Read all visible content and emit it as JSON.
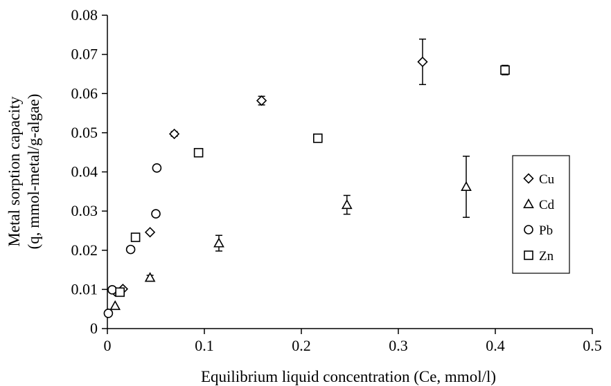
{
  "chart_data": {
    "type": "scatter",
    "title": "",
    "xlabel": "Equilibrium liquid concentration (Ce, mmol/l)",
    "ylabel_line1": "Metal sorption capacity",
    "ylabel_line2": "(q, mmol-metal/g-algae)",
    "xlim": [
      0,
      0.5
    ],
    "ylim": [
      0,
      0.08
    ],
    "x_ticks": [
      "0",
      "0.1",
      "0.2",
      "0.3",
      "0.4",
      "0.5"
    ],
    "y_ticks": [
      "0",
      "0.01",
      "0.02",
      "0.03",
      "0.04",
      "0.05",
      "0.06",
      "0.07",
      "0.08"
    ],
    "x_tick_values": [
      0,
      0.1,
      0.2,
      0.3,
      0.4,
      0.5
    ],
    "y_tick_values": [
      0,
      0.01,
      0.02,
      0.03,
      0.04,
      0.05,
      0.06,
      0.07,
      0.08
    ],
    "grid": false,
    "legend_position": "right",
    "series": [
      {
        "name": "Cu",
        "marker": "diamond",
        "points": [
          {
            "x": 0.008,
            "y": 0.0095,
            "err": 0
          },
          {
            "x": 0.016,
            "y": 0.0101,
            "err": 0
          },
          {
            "x": 0.044,
            "y": 0.0246,
            "err": 0
          },
          {
            "x": 0.069,
            "y": 0.0497,
            "err": 0.0006
          },
          {
            "x": 0.159,
            "y": 0.0582,
            "err": 0.0011
          },
          {
            "x": 0.325,
            "y": 0.0681,
            "err": 0.0058
          }
        ]
      },
      {
        "name": "Cd",
        "marker": "triangle",
        "points": [
          {
            "x": 0.008,
            "y": 0.0058,
            "err": 0
          },
          {
            "x": 0.044,
            "y": 0.013,
            "err": 0.0006
          },
          {
            "x": 0.115,
            "y": 0.0218,
            "err": 0.002
          },
          {
            "x": 0.247,
            "y": 0.0316,
            "err": 0.0024
          },
          {
            "x": 0.37,
            "y": 0.0362,
            "err": 0.0078
          }
        ]
      },
      {
        "name": "Pb",
        "marker": "circle",
        "points": [
          {
            "x": 0.001,
            "y": 0.0039,
            "err": 0
          },
          {
            "x": 0.005,
            "y": 0.0099,
            "err": 0
          },
          {
            "x": 0.024,
            "y": 0.0202,
            "err": 0
          },
          {
            "x": 0.05,
            "y": 0.0293,
            "err": 0.0004
          },
          {
            "x": 0.051,
            "y": 0.041,
            "err": 0
          }
        ]
      },
      {
        "name": "Zn",
        "marker": "square",
        "points": [
          {
            "x": 0.013,
            "y": 0.0093,
            "err": 0
          },
          {
            "x": 0.029,
            "y": 0.0233,
            "err": 0.0004
          },
          {
            "x": 0.094,
            "y": 0.0449,
            "err": 0.0005
          },
          {
            "x": 0.217,
            "y": 0.0486,
            "err": 0.0006
          },
          {
            "x": 0.41,
            "y": 0.066,
            "err": 0.0012
          }
        ]
      }
    ]
  }
}
